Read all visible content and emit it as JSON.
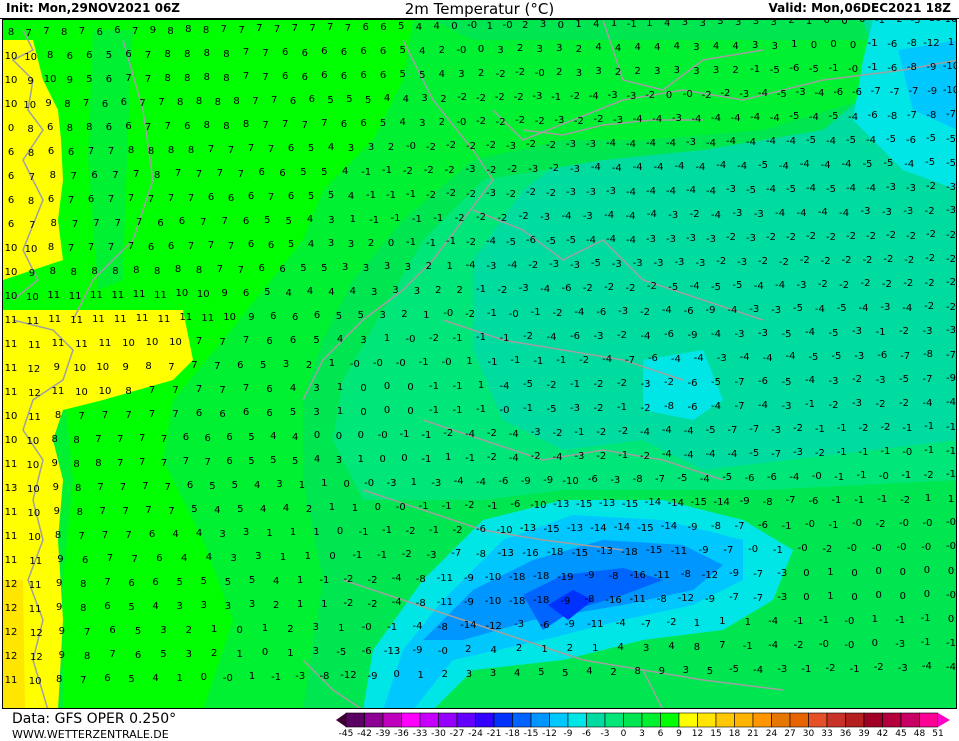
{
  "header": {
    "init": "Init: Mon,29NOV2021 06Z",
    "title": "2m Temperatur (°C)",
    "valid": "Valid: Mon,06DEC2021 18Z"
  },
  "footer": {
    "source": "Data: GFS OPER 0.250°",
    "website": "WWW.WETTERZENTRALE.DE"
  },
  "legend": {
    "ticks": [
      "-45",
      "-42",
      "-39",
      "-36",
      "-33",
      "-30",
      "-27",
      "-24",
      "-21",
      "-18",
      "-15",
      "-12",
      "-9",
      "-6",
      "-3",
      "0",
      "3",
      "6",
      "9",
      "12",
      "15",
      "18",
      "21",
      "24",
      "27",
      "30",
      "33",
      "36",
      "39",
      "42",
      "45",
      "48",
      "51"
    ],
    "below_color": "#3c0032",
    "above_color": "#ff00c8",
    "colors": [
      "#5a0064",
      "#8c0096",
      "#be00be",
      "#ff00ff",
      "#c800ff",
      "#9600ff",
      "#6400ff",
      "#3200ff",
      "#0032ff",
      "#0064ff",
      "#0096ff",
      "#00c8ff",
      "#00e6e6",
      "#00dca0",
      "#00e678",
      "#00e650",
      "#00f032",
      "#00ff00",
      "#ffff00",
      "#ffe600",
      "#ffc800",
      "#ffb400",
      "#ff9600",
      "#e67800",
      "#e66400",
      "#e65028",
      "#c83228",
      "#b41e1e",
      "#a00023",
      "#b4003c",
      "#c80064",
      "#ff0096"
    ]
  },
  "map": {
    "coastline_color": "#a0a0a0",
    "temperature_rows": [
      "8 7 7 8 7 6 6 7 9 8 8 8 7 7 7 7 7 7 7 7 6 6 5 4 4 0 -0 1 -0 2 3 0 1 4 1 -1 1 4 3 3 3 3 3 3 2 1 0 0 0 -1 -2 -3 -10 10",
      "10 10 8 6 6 5 6 7 8 8 8 8 7 7 6 6 6 6 6 6 5 4 2 -0 0 3 2 3 3 2 4 4 4 4 4 3 4 4 3 3 1 0 0 0 -1 -6 -8 -12 1",
      "10 9 10 9 5 6 7 7 8 8 8 8 7 7 6 6 6 6 6 6 5 5 4 3 2 -2 -2 -0 2 3 3 2 2 3 3 3 3 2 -1 -5 -6 -5 -1 -0 -1 -6 -8 -9 -10",
      "10 10 9 8 7 6 6 7 7 8 8 8 8 7 7 6 6 5 5 5 4 4 3 2 -2 -2 -2 -2 -3 -1 -2 -4 -3 -3 -2 0 -0 -2 -2 -3 -4 -5 -3 -4 -6 -6 -7 -7 -7 -9 -10",
      "0 8 6 8 8 6 6 7 7 6 8 8 8 7 7 7 7 6 6 5 4 3 2 -0 -2 -2 -2 -2 -3 -2 -2 -3 -4 -4 -3 -4 -4 -4 -4 -4 -5 -4 -5 -4 -6 -8 -7 -8 -7",
      "6 8 6 6 7 7 8 8 8 8 7 7 7 7 6 5 4 3 3 2 -0 -2 -2 -2 -2 -3 -2 -2 -3 -3 -4 -4 -4 -4 -3 -4 -4 -4 -4 -4 -5 -4 -5 -4 -5 -6 -5 -5",
      "6 7 8 7 6 7 7 8 7 7 7 7 6 6 5 5 4 -1 -1 -2 -2 -2 -3 -2 -2 -3 -2 -3 -4 -4 -4 -4 -4 -4 -4 -4 -5 -4 -4 -4 -4 -5 -5 -4 -5 -5",
      "6 8 6 7 6 7 7 7 7 7 6 6 6 7 6 5 5 4 -1 -1 -1 -2 -2 -2 -3 -2 -2 -2 -3 -3 -3 -4 -4 -4 -4 -4 -3 -5 -4 -5 -4 -5 -4 -4 -3 -3 -2 -3",
      "6 7 8 7 7 7 7 6 6 7 7 6 5 5 4 3 1 -1 -1 -1 -1 -2 -2 -2 -2 -3 -4 -3 -4 -4 -4 -3 -2 -4 -3 -3 -4 -4 -4 -4 -3 -3 -3 -2 -3",
      "10 10 8 7 7 7 7 6 6 7 7 7 6 6 5 4 3 3 2 0 -1 -1 -1 -2 -4 -5 -6 -5 -5 -4 -4 -4 -3 -3 -3 -3 -2 -3 -2 -2 -2 -2 -2 -2 -2 -2 -2 -2",
      "10 9 8 8 8 8 8 8 8 8 7 7 6 6 5 5 3 3 3 3 2 1 -4 -3 -4 -2 -3 -3 -5 -3 -3 -3 -3 -3 -2 -3 -2 -2 -2 -2 -2 -2 -2 -2 -2 -2",
      "10 10 11 11 11 11 11 11 10 10 9 6 5 4 4 4 4 3 3 3 2 2 -1 -2 -3 -4 -6 -2 -2 -2 -2 -5 -4 -5 -5 -4 -4 -3 -2 -2 -2 -2 -2 -2 -2",
      "11 11 11 11 11 11 11 11 11 11 10 9 6 6 6 5 5 3 2 1 -0 -2 -1 -0 -1 -2 -4 -6 -3 -2 -4 -6 -9 -4 -3 -3 -5 -4 -5 -4 -3 -4 -2 -2",
      "11 11 11 11 11 10 10 10 7 7 7 6 6 5 4 3 1 -0 -2 -1 -1 -1 -2 -4 -6 -3 -2 -4 -6 -9 -4 -3 -3 -5 -4 -5 -3 -1 -2 -3 -3",
      "11 12 9 10 10 9 8 7 7 7 6 5 3 2 1 -0 -0 -0 -1 -0 1 -1 -1 -1 -1 -2 -4 -7 -6 -4 -4 -3 -4 -4 -4 -5 -5 -3 -6 -7 -8 -7",
      "11 12 11 10 10 8 7 7 7 7 7 6 4 3 1 0 0 0 -1 -1 1 -4 -5 -2 -1 -2 -2 -3 -2 -6 -5 -7 -6 -5 -4 -3 -2 -3 -5 -7 -9",
      "10 11 8 7 7 7 7 7 6 6 6 6 5 3 1 0 0 0 -1 -1 -1 -0 -1 -5 -3 -2 -1 -2 -8 -6 -4 -7 -4 -3 -1 -2 -3 -2 -2 -4 -4",
      "10 10 8 8 7 7 7 7 6 6 6 5 4 4 0 0 0 -0 -1 -1 -2 -4 -2 -4 -3 -2 -1 -2 -2 -4 -4 -4 -5 -7 -7 -3 -2 -1 -1 -2 -2 -1 -1 -1",
      "11 10 9 8 8 7 7 7 7 7 6 5 5 5 4 3 1 0 0 -1 1 -1 -2 -4 -2 -4 -3 -2 -1 -2 -4 -4 -4 -4 -5 -7 -3 -2 -1 -1 -1 -0 -1 -1",
      "13 10 9 8 7 7 7 7 6 5 5 4 3 1 1 0 -0 -3 1 -3 -4 -4 -6 -9 -9 -10 -6 -3 -8 -7 -5 -4 -5 -6 -6 -4 -0 -1 -1 -0 -1 -2 -1",
      "11 10 9 8 7 7 7 7 5 4 5 4 4 2 1 1 0 -0 -1 -1 -2 -1 -6 -10 -13 -15 -13 -15 -14 -14 -15 -14 -9 -8 -7 -6 -1 -1 -1 -2 1 1",
      "11 10 8 7 7 7 6 4 4 3 3 1 1 1 0 -1 -1 -2 -1 -2 -6 -10 -13 -15 -13 -14 -14 -15 -14 -9 -8 -7 -6 -1 -0 -1 -0 -2 -0 -0 -0",
      "11 11 9 6 7 7 6 4 4 3 3 1 1 0 -1 -1 -2 -3 -7 -8 -13 -16 -18 -15 -13 -18 -15 -11 -9 -7 -0 -1 -0 -2 -0 -0 -0 -0 -0",
      "12 11 9 8 7 6 6 5 5 5 5 4 1 -1 -2 -2 -4 -8 -11 -9 -10 -18 -18 -19 -9 -8 -16 -11 -8 -12 -9 -7 -3 0 1 0 0 0 0 0",
      "12 11 9 8 6 5 4 3 3 3 3 2 1 1 -2 -2 -4 -8 -11 -9 -10 -18 -18 -9 -8 -16 -11 -8 -12 -9 -7 -7 -3 0 1 0 0 0 0 -0",
      "12 12 9 7 6 5 3 2 1 0 1 2 3 1 -0 -1 -4 -8 -14 -12 -3 -6 -9 -11 -4 -7 -2 1 1 1 -4 -1 -1 -0 1 -1 -1 0",
      "12 12 9 8 7 6 5 3 2 1 0 1 3 -5 -6 -13 -9 -0 2 4 2 1 2 1 4 3 4 8 7 -1 -4 -2 -0 -0 0 -3 -1 -1",
      "11 10 8 7 6 5 4 1 0 -0 1 -1 -3 -8 -12 -9 0 1 2 3 3 4 5 5 4 2 8 9 3 5 -5 -4 -3 -1 -2 -1 -2 -3 -4 -4"
    ]
  }
}
